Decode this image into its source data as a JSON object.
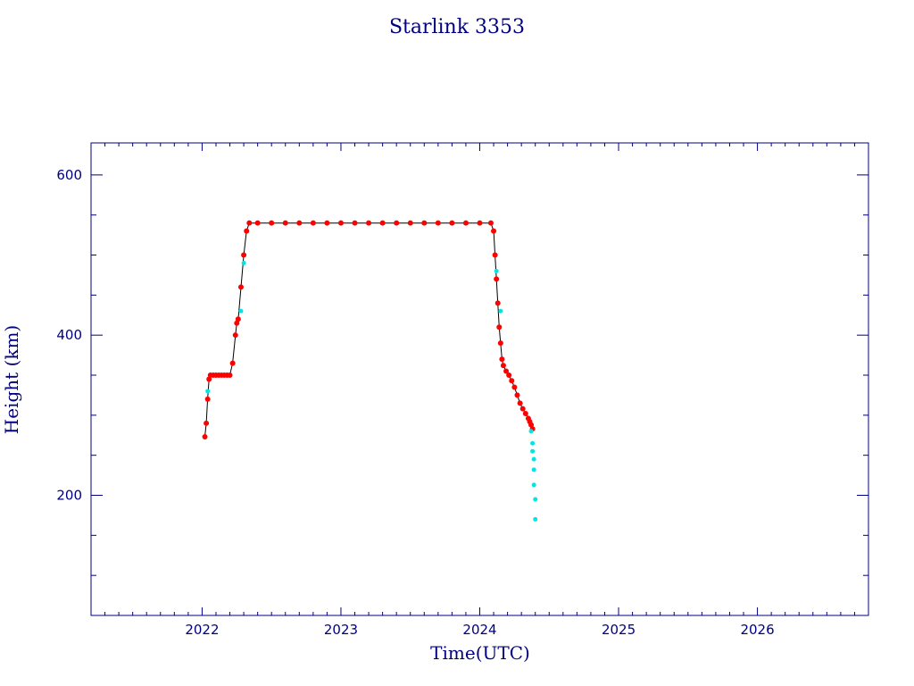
{
  "chart_data": {
    "type": "scatter",
    "title": "Starlink 3353",
    "xlabel": "Time(UTC)",
    "ylabel": "Height (km)",
    "xlim": [
      2021.2,
      2026.8
    ],
    "ylim": [
      50,
      640
    ],
    "x_ticks": [
      2022,
      2023,
      2024,
      2025,
      2026
    ],
    "x_tick_labels": [
      "2022",
      "2023",
      "2024",
      "2025",
      "2026"
    ],
    "y_ticks": [
      200,
      400,
      600
    ],
    "y_tick_labels": [
      "200",
      "400",
      "600"
    ],
    "colors": {
      "axis": "#000080",
      "main": "#ff0000",
      "secondary": "#00e5e5",
      "line": "#000000"
    },
    "grid": false,
    "series": [
      {
        "color": "#ff0000",
        "x": [
          2022.02,
          2022.03,
          2022.04,
          2022.05,
          2022.06,
          2022.08,
          2022.1,
          2022.12,
          2022.14,
          2022.16,
          2022.18,
          2022.2,
          2022.22,
          2022.24,
          2022.25,
          2022.26,
          2022.28,
          2022.3,
          2022.32,
          2022.34,
          2022.4,
          2022.5,
          2022.6,
          2022.7,
          2022.8,
          2022.9,
          2023.0,
          2023.1,
          2023.2,
          2023.3,
          2023.4,
          2023.5,
          2023.6,
          2023.7,
          2023.8,
          2023.9,
          2024.0,
          2024.08,
          2024.1,
          2024.11,
          2024.12,
          2024.13,
          2024.14,
          2024.15,
          2024.16,
          2024.17,
          2024.19,
          2024.21,
          2024.23,
          2024.25,
          2024.27,
          2024.29,
          2024.31,
          2024.33,
          2024.35,
          2024.36,
          2024.37,
          2024.38
        ],
        "y": [
          273,
          290,
          320,
          345,
          350,
          350,
          350,
          350,
          350,
          350,
          350,
          350,
          365,
          400,
          415,
          420,
          460,
          500,
          530,
          540,
          540,
          540,
          540,
          540,
          540,
          540,
          540,
          540,
          540,
          540,
          540,
          540,
          540,
          540,
          540,
          540,
          540,
          540,
          530,
          500,
          470,
          440,
          410,
          390,
          370,
          362,
          355,
          350,
          343,
          335,
          325,
          315,
          308,
          302,
          296,
          292,
          288,
          283
        ]
      },
      {
        "color": "#00e5e5",
        "x": [
          2022.04,
          2022.28,
          2022.3,
          2024.12,
          2024.15,
          2024.37,
          2024.38,
          2024.38,
          2024.39,
          2024.39,
          2024.39,
          2024.4,
          2024.4
        ],
        "y": [
          330,
          430,
          490,
          480,
          430,
          280,
          265,
          255,
          245,
          232,
          213,
          195,
          170
        ]
      }
    ]
  }
}
